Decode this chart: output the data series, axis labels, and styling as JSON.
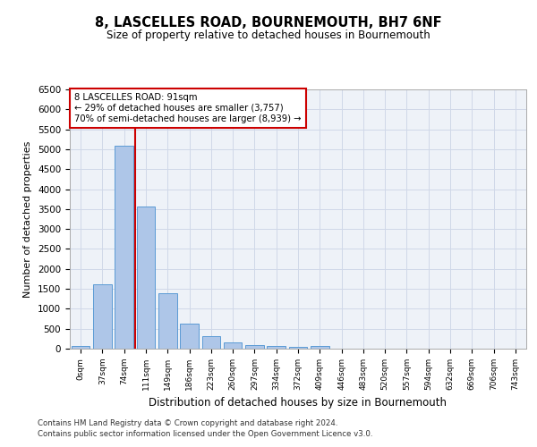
{
  "title": "8, LASCELLES ROAD, BOURNEMOUTH, BH7 6NF",
  "subtitle": "Size of property relative to detached houses in Bournemouth",
  "xlabel": "Distribution of detached houses by size in Bournemouth",
  "ylabel": "Number of detached properties",
  "categories": [
    "0sqm",
    "37sqm",
    "74sqm",
    "111sqm",
    "149sqm",
    "186sqm",
    "223sqm",
    "260sqm",
    "297sqm",
    "334sqm",
    "372sqm",
    "409sqm",
    "446sqm",
    "483sqm",
    "520sqm",
    "557sqm",
    "594sqm",
    "632sqm",
    "669sqm",
    "706sqm",
    "743sqm"
  ],
  "bar_values": [
    70,
    1620,
    5080,
    3560,
    1390,
    620,
    310,
    150,
    90,
    60,
    55,
    75,
    0,
    0,
    0,
    0,
    0,
    0,
    0,
    0,
    0
  ],
  "bar_color": "#aec6e8",
  "bar_edge_color": "#5b9bd5",
  "vline_x": 2.5,
  "vline_color": "#cc0000",
  "annotation_text": "8 LASCELLES ROAD: 91sqm\n← 29% of detached houses are smaller (3,757)\n70% of semi-detached houses are larger (8,939) →",
  "annotation_box_color": "#ffffff",
  "annotation_box_edge": "#cc0000",
  "ylim": [
    0,
    6500
  ],
  "yticks": [
    0,
    500,
    1000,
    1500,
    2000,
    2500,
    3000,
    3500,
    4000,
    4500,
    5000,
    5500,
    6000,
    6500
  ],
  "grid_color": "#d0d8e8",
  "background_color": "#eef2f8",
  "footer_line1": "Contains HM Land Registry data © Crown copyright and database right 2024.",
  "footer_line2": "Contains public sector information licensed under the Open Government Licence v3.0."
}
